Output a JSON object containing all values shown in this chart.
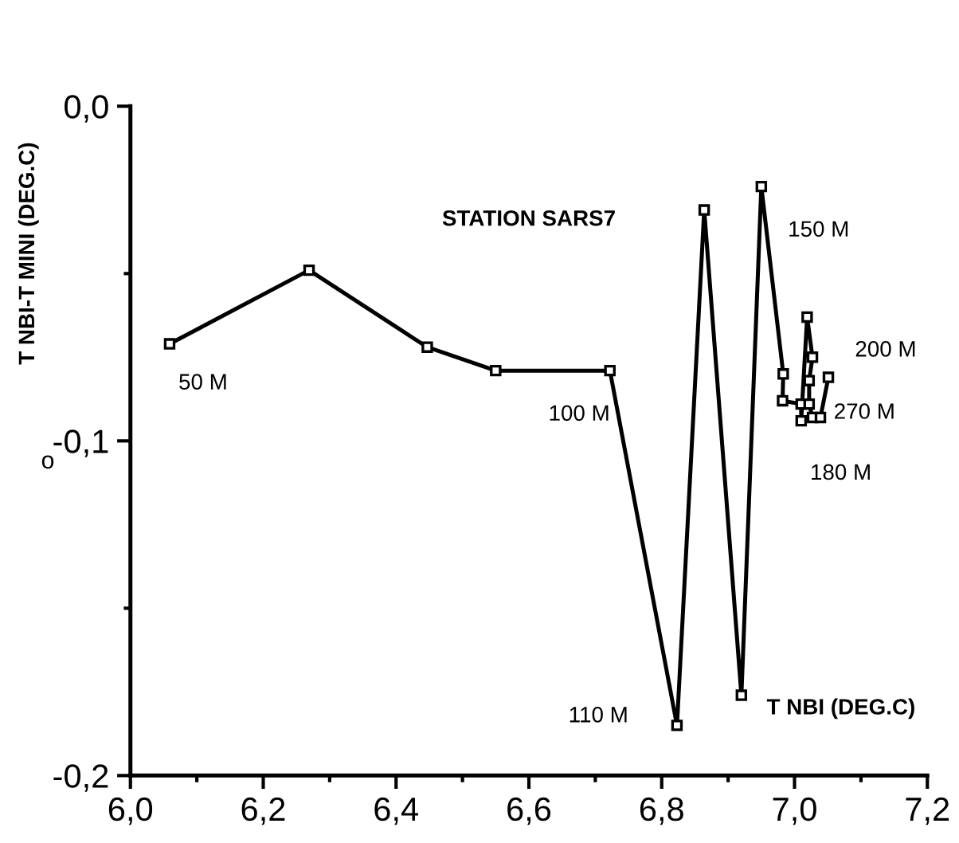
{
  "chart_data": {
    "type": "line",
    "title": "STATION SARS7",
    "xlabel": "T NBI (DEG.C)",
    "ylabel": "T NBI-T MINI (DEG.C)",
    "x": [
      6.059,
      6.269,
      6.447,
      6.55,
      6.722,
      6.823,
      6.864,
      6.92,
      6.95,
      6.983,
      6.982,
      7.01,
      7.01,
      7.019,
      7.027,
      7.022,
      7.022,
      7.027,
      7.039,
      7.051
    ],
    "values": [
      -0.071,
      -0.049,
      -0.072,
      -0.079,
      -0.079,
      -0.185,
      -0.031,
      -0.176,
      -0.024,
      -0.08,
      -0.088,
      -0.089,
      -0.094,
      -0.063,
      -0.075,
      -0.082,
      -0.089,
      -0.093,
      -0.093,
      -0.081
    ],
    "color": "#000000",
    "marker": "square",
    "line_style": "solid",
    "annotations": [
      {
        "text": "50 M",
        "x": 6.059,
        "y": -0.071
      },
      {
        "text": "100 M",
        "x": 6.722,
        "y": -0.079
      },
      {
        "text": "110 M",
        "x": 6.823,
        "y": -0.185
      },
      {
        "text": "150 M",
        "x": 6.95,
        "y": -0.024
      },
      {
        "text": "200 M",
        "x": 7.051,
        "y": -0.081
      },
      {
        "text": "270 M",
        "x": 7.039,
        "y": -0.093
      },
      {
        "text": "180 M",
        "x": 7.01,
        "y": -0.094
      },
      "o"
    ],
    "xlim": [
      6.0,
      7.2
    ],
    "ylim": [
      -0.2,
      0.0
    ],
    "xticks": [
      {
        "value": 6.0,
        "label": "6,0"
      },
      {
        "value": 6.1,
        "label": null
      },
      {
        "value": 6.2,
        "label": "6,2"
      },
      {
        "value": 6.3,
        "label": null
      },
      {
        "value": 6.4,
        "label": "6,4"
      },
      {
        "value": 6.5,
        "label": null
      },
      {
        "value": 6.6,
        "label": "6,6"
      },
      {
        "value": 6.7,
        "label": null
      },
      {
        "value": 6.8,
        "label": "6,8"
      },
      {
        "value": 6.9,
        "label": null
      },
      {
        "value": 7.0,
        "label": "7,0"
      },
      {
        "value": 7.1,
        "label": null
      },
      {
        "value": 7.2,
        "label": "7,2"
      }
    ],
    "yticks": [
      {
        "value": -0.2,
        "label": "-0,2"
      },
      {
        "value": -0.15,
        "label": null
      },
      {
        "value": -0.1,
        "label": "-0,1"
      },
      {
        "value": -0.05,
        "label": null
      },
      {
        "value": 0.0,
        "label": "0,0"
      }
    ],
    "grid": false,
    "legend": false
  }
}
